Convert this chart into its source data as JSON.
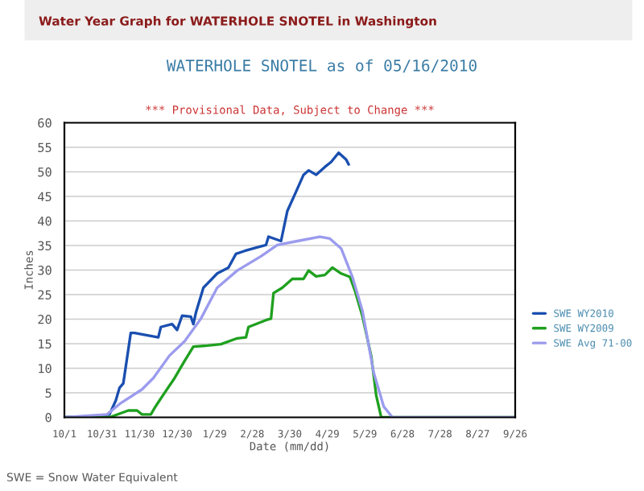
{
  "chart_data": {
    "type": "line",
    "title": "WATERHOLE SNOTEL as of 05/16/2010",
    "subtitle": "*** Provisional Data, Subject to Change ***",
    "xlabel": "Date (mm/dd)",
    "ylabel": "Inches",
    "annotations": [
      "Water Year Graph for WATERHOLE SNOTEL in Washington",
      "SWE = Snow Water Equivalent"
    ],
    "xlim": [
      "2009-10-01",
      "2010-09-26"
    ],
    "xticks": [
      {
        "value": "2009-10-01",
        "label": "10/1"
      },
      {
        "value": "2009-10-31",
        "label": "10/31"
      },
      {
        "value": "2009-11-30",
        "label": "11/30"
      },
      {
        "value": "2009-12-30",
        "label": "12/30"
      },
      {
        "value": "2010-01-29",
        "label": "1/29"
      },
      {
        "value": "2010-02-28",
        "label": "2/28"
      },
      {
        "value": "2010-03-30",
        "label": "3/30"
      },
      {
        "value": "2010-04-29",
        "label": "4/29"
      },
      {
        "value": "2010-05-29",
        "label": "5/29"
      },
      {
        "value": "2010-06-28",
        "label": "6/28"
      },
      {
        "value": "2010-07-28",
        "label": "7/28"
      },
      {
        "value": "2010-08-27",
        "label": "8/27"
      },
      {
        "value": "2010-09-26",
        "label": "9/26"
      }
    ],
    "ylim": [
      0,
      60
    ],
    "yticks": [
      0,
      5,
      10,
      15,
      20,
      25,
      30,
      35,
      40,
      45,
      50,
      55,
      60
    ],
    "grid": "y",
    "legend": "right",
    "marker": "none",
    "line_style": "solid",
    "series": [
      {
        "name": "SWE WY2010",
        "color": "#1a4fb0",
        "x": [
          "2009-10-01",
          "2009-10-25",
          "2009-11-06",
          "2009-11-11",
          "2009-11-14",
          "2009-11-17",
          "2009-11-19",
          "2009-11-23",
          "2009-11-26",
          "2009-12-02",
          "2009-12-15",
          "2009-12-17",
          "2009-12-26",
          "2009-12-30",
          "2010-01-03",
          "2010-01-10",
          "2010-01-12",
          "2010-01-14",
          "2010-01-20",
          "2010-01-31",
          "2010-02-09",
          "2010-02-15",
          "2010-02-22",
          "2010-03-02",
          "2010-03-11",
          "2010-03-13",
          "2010-03-23",
          "2010-03-28",
          "2010-04-03",
          "2010-04-10",
          "2010-04-14",
          "2010-04-20",
          "2010-04-27",
          "2010-05-02",
          "2010-05-08",
          "2010-05-14",
          "2010-05-16"
        ],
        "values": [
          0,
          0.2,
          0.6,
          3.4,
          6,
          6.9,
          10.3,
          17.2,
          17.2,
          16.9,
          16.3,
          18.4,
          19,
          17.8,
          20.7,
          20.5,
          19,
          21.3,
          26.4,
          29.3,
          30.5,
          33.3,
          33.9,
          34.5,
          35.1,
          36.8,
          35.9,
          42,
          45.4,
          49.4,
          50.3,
          49.4,
          51,
          52,
          53.9,
          52.5,
          51.5
        ]
      },
      {
        "name": "SWE WY2009",
        "color": "#1fa01f",
        "x": [
          "2009-10-01",
          "2009-11-06",
          "2009-11-21",
          "2009-11-28",
          "2009-12-02",
          "2009-12-09",
          "2009-12-13",
          "2009-12-19",
          "2009-12-28",
          "2010-01-05",
          "2010-01-12",
          "2010-01-23",
          "2010-02-03",
          "2010-02-16",
          "2010-02-23",
          "2010-02-25",
          "2010-03-11",
          "2010-03-15",
          "2010-03-17",
          "2010-03-24",
          "2010-04-01",
          "2010-04-10",
          "2010-04-14",
          "2010-04-20",
          "2010-04-27",
          "2010-05-03",
          "2010-05-10",
          "2010-05-17",
          "2010-05-21",
          "2010-05-27",
          "2010-06-03",
          "2010-06-07",
          "2010-06-11",
          "2010-09-26"
        ],
        "values": [
          0,
          0,
          1.4,
          1.4,
          0.6,
          0.6,
          2.3,
          4.6,
          8,
          11.5,
          14.4,
          14.6,
          14.9,
          16.1,
          16.3,
          18.4,
          19.8,
          20.1,
          25.3,
          26.4,
          28.2,
          28.2,
          29.9,
          28.7,
          29,
          30.5,
          29.3,
          28.6,
          25.8,
          20.6,
          12.5,
          4.5,
          0,
          0
        ]
      },
      {
        "name": "SWE Avg 71-00",
        "color": "#9b9bee",
        "x": [
          "2009-10-01",
          "2009-11-04",
          "2009-11-15",
          "2009-12-02",
          "2009-12-11",
          "2009-12-24",
          "2010-01-05",
          "2010-01-18",
          "2010-01-31",
          "2010-02-16",
          "2010-03-07",
          "2010-03-20",
          "2010-04-05",
          "2010-04-23",
          "2010-05-01",
          "2010-05-10",
          "2010-05-19",
          "2010-05-27",
          "2010-06-05",
          "2010-06-13",
          "2010-06-20",
          "2010-09-26"
        ],
        "values": [
          0,
          0.6,
          2.9,
          5.7,
          8,
          12.6,
          15.5,
          20.1,
          26.4,
          29.9,
          32.8,
          35.1,
          35.9,
          36.8,
          36.4,
          34.4,
          28.6,
          21.7,
          9.1,
          2.2,
          0,
          0
        ]
      }
    ]
  }
}
